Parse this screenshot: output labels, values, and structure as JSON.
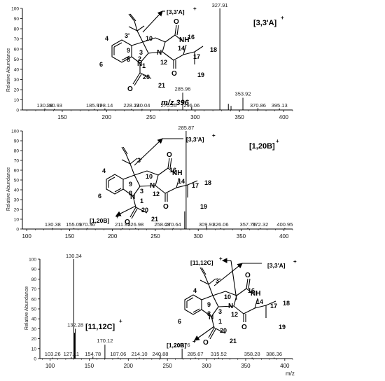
{
  "colors": {
    "ink": "#000000",
    "axis": "#000000",
    "background": "#ffffff"
  },
  "chart_data": [
    {
      "type": "bar",
      "ylabel": "Relative Abundance",
      "xlim": [
        105,
        410
      ],
      "ylim": [
        0,
        100
      ],
      "x_ticks": [
        150,
        200,
        250,
        300,
        350,
        400
      ],
      "y_ticks": [
        0,
        10,
        20,
        30,
        40,
        50,
        60,
        70,
        80,
        90,
        100
      ],
      "precursor_label": "m/z 396",
      "annotations": [
        {
          "text": "[3,3'A]",
          "sup": "+"
        },
        {
          "text": "[3,3'A]",
          "sup": "+"
        }
      ],
      "peak_labels": [
        "130.28",
        "140.93",
        "185.97",
        "198.14",
        "228.13",
        "240.04",
        "270.25",
        "285.96",
        "296.06",
        "327.91",
        "353.92",
        "370.86",
        "395.13"
      ],
      "peaks": [
        {
          "x": 130.28,
          "y": 1.5
        },
        {
          "x": 140.93,
          "y": 1
        },
        {
          "x": 185.97,
          "y": 1
        },
        {
          "x": 198.14,
          "y": 1.5
        },
        {
          "x": 228.13,
          "y": 1
        },
        {
          "x": 240.04,
          "y": 1
        },
        {
          "x": 270.25,
          "y": 1
        },
        {
          "x": 285.96,
          "y": 17
        },
        {
          "x": 296.06,
          "y": 3
        },
        {
          "x": 327.91,
          "y": 100
        },
        {
          "x": 337.5,
          "y": 6
        },
        {
          "x": 340.5,
          "y": 4
        },
        {
          "x": 353.92,
          "y": 12
        },
        {
          "x": 370.86,
          "y": 2
        },
        {
          "x": 395.13,
          "y": 1.5
        }
      ],
      "structure_numbers": [
        "4",
        "6",
        "9",
        "8",
        "3",
        "1",
        "10",
        "2",
        "3'",
        "16",
        "14",
        "12",
        "17",
        "18",
        "19",
        "20",
        "21"
      ]
    },
    {
      "type": "bar",
      "ylabel": "Relative Abundance",
      "xlim": [
        95,
        410
      ],
      "ylim": [
        0,
        100
      ],
      "x_ticks": [
        100,
        150,
        200,
        250,
        300,
        350,
        400
      ],
      "y_ticks": [
        0,
        10,
        20,
        30,
        40,
        50,
        60,
        70,
        80,
        90,
        100
      ],
      "annotations": [
        {
          "text": "[1,20B]",
          "sup": "+"
        },
        {
          "text": "[3,3'A]",
          "sup": "+"
        },
        {
          "text": "[1,20B]",
          "sup": "+"
        }
      ],
      "peak_labels": [
        "130.38",
        "155.09",
        "170.36",
        "211.95",
        "226.98",
        "258.08",
        "270.64",
        "285.87",
        "309.91",
        "326.06",
        "357.79",
        "372.32",
        "400.95"
      ],
      "peaks": [
        {
          "x": 130.38,
          "y": 1
        },
        {
          "x": 155.09,
          "y": 1
        },
        {
          "x": 170.36,
          "y": 1
        },
        {
          "x": 211.95,
          "y": 1
        },
        {
          "x": 226.98,
          "y": 1
        },
        {
          "x": 258.08,
          "y": 1
        },
        {
          "x": 270.64,
          "y": 1
        },
        {
          "x": 285.87,
          "y": 100
        },
        {
          "x": 284.2,
          "y": 18
        },
        {
          "x": 309.91,
          "y": 3
        },
        {
          "x": 326.06,
          "y": 1
        },
        {
          "x": 357.79,
          "y": 1
        },
        {
          "x": 372.32,
          "y": 1
        },
        {
          "x": 400.95,
          "y": 1
        }
      ],
      "structure_numbers": [
        "4",
        "6",
        "9",
        "8",
        "3",
        "1",
        "10",
        "3'",
        "16",
        "14",
        "12",
        "17",
        "18",
        "19",
        "20",
        "21"
      ]
    },
    {
      "type": "bar",
      "ylabel": "Relative Abundance",
      "xlabel": "m/z",
      "xlim": [
        87,
        410
      ],
      "ylim": [
        0,
        100
      ],
      "x_ticks": [
        100,
        150,
        200,
        250,
        300,
        350,
        400
      ],
      "y_ticks": [
        0,
        10,
        20,
        30,
        40,
        50,
        60,
        70,
        80,
        90,
        100
      ],
      "annotations": [
        {
          "text": "[11,12C]",
          "sup": "+"
        },
        {
          "text": "[11,12C]",
          "sup": "+"
        },
        {
          "text": "[3,3'A]",
          "sup": "+"
        },
        {
          "text": "[1,20B]",
          "sup": "+"
        }
      ],
      "peak_labels": [
        "103.26",
        "127.11",
        "130.34",
        "132.28",
        "154.78",
        "170.12",
        "187.06",
        "214.10",
        "240.88",
        "268.76",
        "285.67",
        "315.52",
        "358.28",
        "386.36"
      ],
      "peaks": [
        {
          "x": 103.26,
          "y": 1
        },
        {
          "x": 127.11,
          "y": 1.5
        },
        {
          "x": 130.34,
          "y": 100
        },
        {
          "x": 131.3,
          "y": 26
        },
        {
          "x": 132.28,
          "y": 30
        },
        {
          "x": 154.78,
          "y": 2
        },
        {
          "x": 170.12,
          "y": 14
        },
        {
          "x": 187.06,
          "y": 1
        },
        {
          "x": 214.1,
          "y": 1
        },
        {
          "x": 240.88,
          "y": 4
        },
        {
          "x": 268.76,
          "y": 10
        },
        {
          "x": 285.67,
          "y": 1
        },
        {
          "x": 315.52,
          "y": 1
        },
        {
          "x": 358.28,
          "y": 1
        },
        {
          "x": 386.36,
          "y": 1
        }
      ],
      "structure_numbers": [
        "4",
        "6",
        "9",
        "8",
        "3",
        "1",
        "10",
        "3'",
        "16",
        "14",
        "12",
        "17",
        "18",
        "19",
        "20",
        "21"
      ]
    }
  ],
  "atoms": {
    "N": "N",
    "NH": "NH",
    "O": "O"
  }
}
